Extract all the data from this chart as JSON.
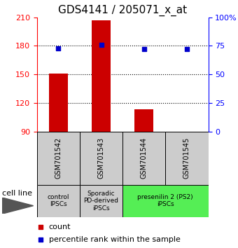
{
  "title": "GDS4141 / 205071_x_at",
  "samples": [
    "GSM701542",
    "GSM701543",
    "GSM701544",
    "GSM701545"
  ],
  "counts": [
    151,
    207,
    113,
    90
  ],
  "percentiles": [
    73,
    76,
    72,
    72
  ],
  "ylim_left": [
    90,
    210
  ],
  "ylim_right": [
    0,
    100
  ],
  "yticks_left": [
    90,
    120,
    150,
    180,
    210
  ],
  "yticks_right": [
    0,
    25,
    50,
    75,
    100
  ],
  "ytick_labels_right": [
    "0",
    "25",
    "50",
    "75",
    "100%"
  ],
  "bar_color": "#cc0000",
  "dot_color": "#0000cc",
  "bar_width": 0.45,
  "cell_line_labels": [
    "control\nIPSCs",
    "Sporadic\nPD-derived\niPSCs",
    "presenilin 2 (PS2)\niPSCs"
  ],
  "cell_line_colors": [
    "#cccccc",
    "#cccccc",
    "#55ee55"
  ],
  "cell_line_spans": [
    [
      0,
      1
    ],
    [
      1,
      2
    ],
    [
      2,
      4
    ]
  ],
  "sample_box_color": "#cccccc",
  "bg_color": "#ffffff",
  "legend_count_label": "count",
  "legend_pct_label": "percentile rank within the sample",
  "xlabel_cell_line": "cell line",
  "title_fontsize": 11,
  "tick_fontsize": 8,
  "sample_fontsize": 7,
  "cat_fontsize": 6.5,
  "legend_fontsize": 8
}
